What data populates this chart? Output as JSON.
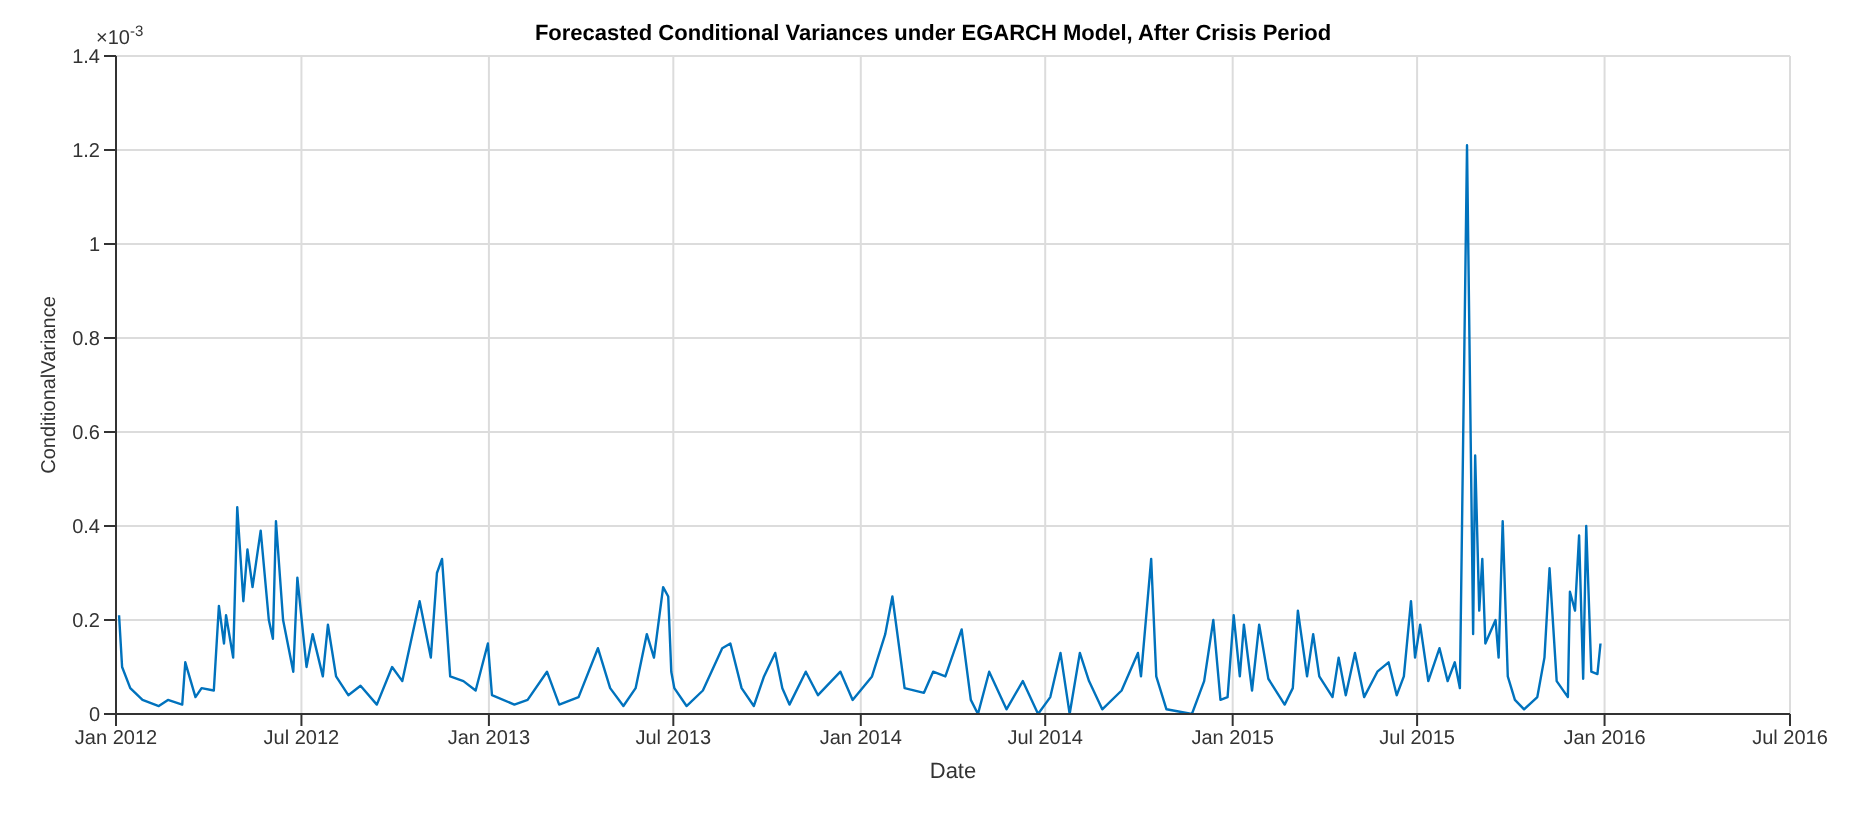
{
  "chart_data": {
    "type": "line",
    "title": "Forecasted Conditional Variances under EGARCH Model, After Crisis Period",
    "xlabel": "Date",
    "ylabel": "ConditionalVariance",
    "annotations": [
      "×10$^{-3}$"
    ],
    "x": [
      "2012-01-04",
      "2012-01-07",
      "2012-01-15",
      "2012-01-27",
      "2012-02-12",
      "2012-02-21",
      "2012-03-06",
      "2012-03-09",
      "2012-03-19",
      "2012-03-25",
      "2012-04-06",
      "2012-04-11",
      "2012-04-16",
      "2012-04-18",
      "2012-04-25",
      "2012-04-29",
      "2012-05-05",
      "2012-05-09",
      "2012-05-14",
      "2012-05-22",
      "2012-05-30",
      "2012-06-03",
      "2012-06-06",
      "2012-06-13",
      "2012-06-23",
      "2012-06-27",
      "2012-07-06",
      "2012-07-12",
      "2012-07-22",
      "2012-07-27",
      "2012-08-04",
      "2012-08-16",
      "2012-08-28",
      "2012-09-13",
      "2012-09-28",
      "2012-10-08",
      "2012-10-25",
      "2012-11-05",
      "2012-11-11",
      "2012-11-16",
      "2012-11-24",
      "2012-12-07",
      "2012-12-19",
      "2012-12-31",
      "2013-01-04",
      "2013-01-26",
      "2013-02-08",
      "2013-02-27",
      "2013-03-11",
      "2013-03-30",
      "2013-04-18",
      "2013-04-30",
      "2013-05-13",
      "2013-05-25",
      "2013-06-05",
      "2013-06-12",
      "2013-06-21",
      "2013-06-26",
      "2013-06-29",
      "2013-07-02",
      "2013-07-14",
      "2013-07-30",
      "2013-08-18",
      "2013-08-26",
      "2013-09-06",
      "2013-09-18",
      "2013-09-28",
      "2013-10-09",
      "2013-10-16",
      "2013-10-23",
      "2013-11-08",
      "2013-11-20",
      "2013-12-12",
      "2013-12-24",
      "2014-01-12",
      "2014-01-25",
      "2014-02-01",
      "2014-02-13",
      "2014-03-04",
      "2014-03-13",
      "2014-03-25",
      "2014-04-10",
      "2014-04-19",
      "2014-04-26",
      "2014-05-07",
      "2014-05-24",
      "2014-06-09",
      "2014-06-24",
      "2014-07-06",
      "2014-07-16",
      "2014-07-25",
      "2014-08-04",
      "2014-08-13",
      "2014-08-26",
      "2014-09-14",
      "2014-09-30",
      "2014-10-03",
      "2014-10-13",
      "2014-10-18",
      "2014-10-28",
      "2014-11-22",
      "2014-12-04",
      "2014-12-13",
      "2014-12-20",
      "2014-12-27",
      "2015-01-02",
      "2015-01-08",
      "2015-01-12",
      "2015-01-20",
      "2015-01-27",
      "2015-02-05",
      "2015-02-21",
      "2015-03-01",
      "2015-03-06",
      "2015-03-15",
      "2015-03-21",
      "2015-03-27",
      "2015-04-09",
      "2015-04-15",
      "2015-04-22",
      "2015-05-01",
      "2015-05-10",
      "2015-05-23",
      "2015-06-03",
      "2015-06-11",
      "2015-06-18",
      "2015-06-25",
      "2015-06-29",
      "2015-07-04",
      "2015-07-12",
      "2015-07-23",
      "2015-07-31",
      "2015-08-07",
      "2015-08-12",
      "2015-08-19",
      "2015-08-25",
      "2015-08-27",
      "2015-08-31",
      "2015-09-03",
      "2015-09-06",
      "2015-09-16",
      "2015-09-19",
      "2015-09-23",
      "2015-09-28",
      "2015-10-05",
      "2015-10-14",
      "2015-10-27",
      "2015-11-03",
      "2015-11-08",
      "2015-11-15",
      "2015-11-26",
      "2015-11-28",
      "2015-12-03",
      "2015-12-07",
      "2015-12-11",
      "2015-12-14",
      "2015-12-19",
      "2015-12-25",
      "2015-12-28"
    ],
    "series": [
      {
        "color": "#0072bd",
        "values": [
          0.21,
          0.1,
          0.055,
          0.03,
          0.017,
          0.03,
          0.02,
          0.11,
          0.036,
          0.055,
          0.05,
          0.23,
          0.15,
          0.21,
          0.12,
          0.44,
          0.24,
          0.35,
          0.27,
          0.39,
          0.2,
          0.16,
          0.41,
          0.2,
          0.09,
          0.29,
          0.1,
          0.17,
          0.08,
          0.19,
          0.08,
          0.04,
          0.06,
          0.02,
          0.1,
          0.07,
          0.24,
          0.12,
          0.3,
          0.33,
          0.08,
          0.07,
          0.05,
          0.15,
          0.04,
          0.02,
          0.03,
          0.09,
          0.02,
          0.036,
          0.14,
          0.055,
          0.017,
          0.055,
          0.17,
          0.12,
          0.27,
          0.25,
          0.09,
          0.055,
          0.017,
          0.05,
          0.14,
          0.15,
          0.055,
          0.017,
          0.08,
          0.13,
          0.055,
          0.02,
          0.09,
          0.04,
          0.09,
          0.03,
          0.08,
          0.17,
          0.25,
          0.055,
          0.045,
          0.09,
          0.08,
          0.18,
          0.03,
          0.0,
          0.09,
          0.01,
          0.07,
          0.0,
          0.036,
          0.13,
          0.0,
          0.13,
          0.07,
          0.01,
          0.05,
          0.13,
          0.08,
          0.33,
          0.08,
          0.01,
          0.0,
          0.07,
          0.2,
          0.03,
          0.036,
          0.21,
          0.08,
          0.19,
          0.05,
          0.19,
          0.075,
          0.02,
          0.055,
          0.22,
          0.08,
          0.17,
          0.08,
          0.036,
          0.12,
          0.04,
          0.13,
          0.036,
          0.09,
          0.11,
          0.04,
          0.08,
          0.24,
          0.12,
          0.19,
          0.07,
          0.14,
          0.07,
          0.11,
          0.055,
          1.21,
          0.17,
          0.55,
          0.22,
          0.33,
          0.15,
          0.2,
          0.12,
          0.41,
          0.08,
          0.03,
          0.01,
          0.036,
          0.12,
          0.31,
          0.07,
          0.036,
          0.26,
          0.22,
          0.38,
          0.075,
          0.4,
          0.09,
          0.085,
          0.15
        ]
      }
    ],
    "xlim": [
      "2012-01-01",
      "2016-07-01"
    ],
    "xticks": [
      {
        "value": "2012-01-01",
        "label": "Jan 2012"
      },
      {
        "value": "2012-07-01",
        "label": "Jul 2012"
      },
      {
        "value": "2013-01-01",
        "label": "Jan 2013"
      },
      {
        "value": "2013-07-01",
        "label": "Jul 2013"
      },
      {
        "value": "2014-01-01",
        "label": "Jan 2014"
      },
      {
        "value": "2014-07-01",
        "label": "Jul 2014"
      },
      {
        "value": "2015-01-01",
        "label": "Jan 2015"
      },
      {
        "value": "2015-07-01",
        "label": "Jul 2015"
      },
      {
        "value": "2016-01-01",
        "label": "Jan 2016"
      },
      {
        "value": "2016-07-01",
        "label": "Jul 2016"
      }
    ],
    "ylim": [
      0,
      1.4
    ],
    "yticks": [
      0,
      0.2,
      0.4,
      0.6,
      0.8,
      1,
      1.2,
      1.4
    ],
    "grid": true,
    "marker": "none",
    "line_style": "solid"
  }
}
